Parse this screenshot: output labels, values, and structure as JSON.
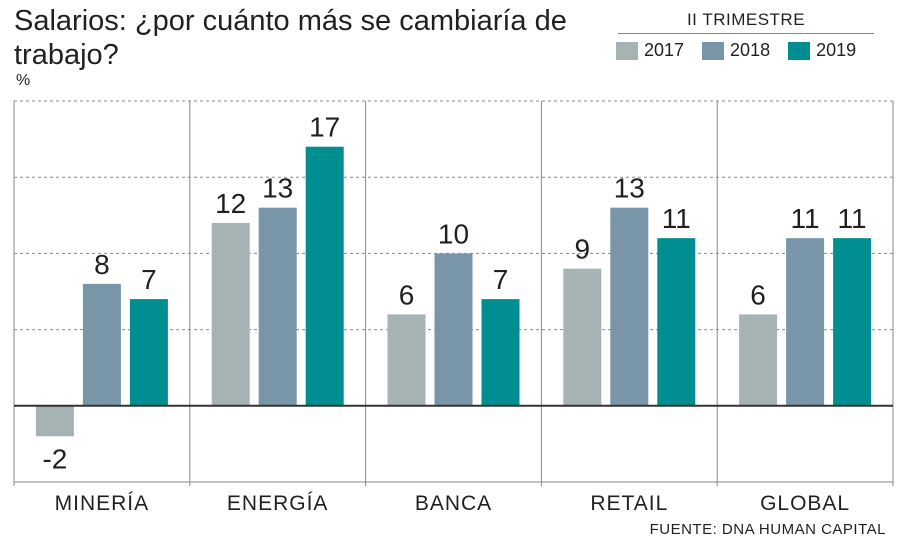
{
  "title": "Salarios: ¿por cuánto más se cambiaría de trabajo?",
  "unit": "%",
  "legend": {
    "title": "II TRIMESTRE",
    "placement": "top-right"
  },
  "source": "FUENTE: DNA HUMAN CAPITAL",
  "colors": {
    "2017": "#a6b2b3",
    "2018": "#7996a9",
    "2019": "#008e91",
    "axis": "#333333",
    "grid": "#8a8a8a"
  },
  "chart_data": {
    "type": "bar",
    "categories": [
      "MINERÍA",
      "ENERGÍA",
      "BANCA",
      "RETAIL",
      "GLOBAL"
    ],
    "series": [
      {
        "name": "2017",
        "values": [
          -2,
          12,
          6,
          9,
          6
        ]
      },
      {
        "name": "2018",
        "values": [
          8,
          13,
          10,
          13,
          11
        ]
      },
      {
        "name": "2019",
        "values": [
          7,
          17,
          7,
          11,
          11
        ]
      }
    ],
    "ylim": [
      -5,
      20
    ],
    "grid": true,
    "data_labels": true
  }
}
